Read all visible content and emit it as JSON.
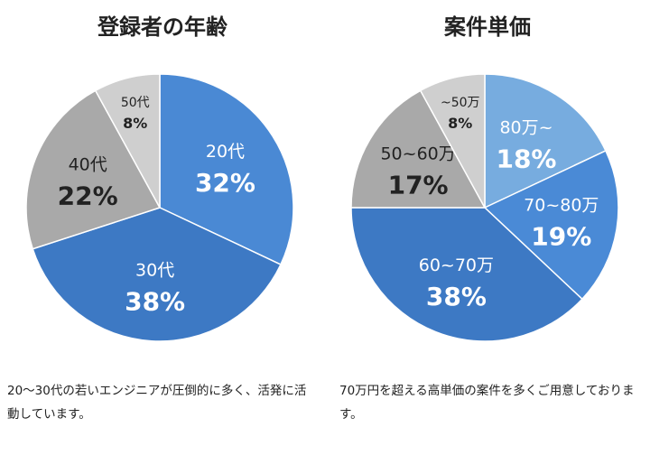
{
  "chart_data": [
    {
      "type": "pie",
      "title": "登録者の年齢",
      "categories": [
        "20代",
        "30代",
        "40代",
        "50代"
      ],
      "values": [
        32,
        38,
        22,
        8
      ],
      "value_labels": [
        "32%",
        "38%",
        "22%",
        "8%"
      ],
      "colors": [
        "#4a89d4",
        "#3d79c4",
        "#a9a9a9",
        "#cfcfcf"
      ],
      "label_colors": [
        "#ffffff",
        "#ffffff",
        "#222222",
        "#222222"
      ]
    },
    {
      "type": "pie",
      "title": "案件単価",
      "categories": [
        "80万~",
        "70~80万",
        "60~70万",
        "50~60万",
        "~50万"
      ],
      "values": [
        18,
        19,
        38,
        17,
        8
      ],
      "value_labels": [
        "18%",
        "19%",
        "38%",
        "17%",
        "8%"
      ],
      "colors": [
        "#77acdf",
        "#4a8ad6",
        "#3d79c4",
        "#a9a9a9",
        "#cfcfcf"
      ],
      "label_colors": [
        "#ffffff",
        "#ffffff",
        "#ffffff",
        "#222222",
        "#222222"
      ]
    }
  ],
  "captions": {
    "left": "20〜30代の若いエンジニアが圧倒的に多く、活発に活動しています。",
    "right": "70万円を超える高単価の案件を多くご用意しております。"
  }
}
